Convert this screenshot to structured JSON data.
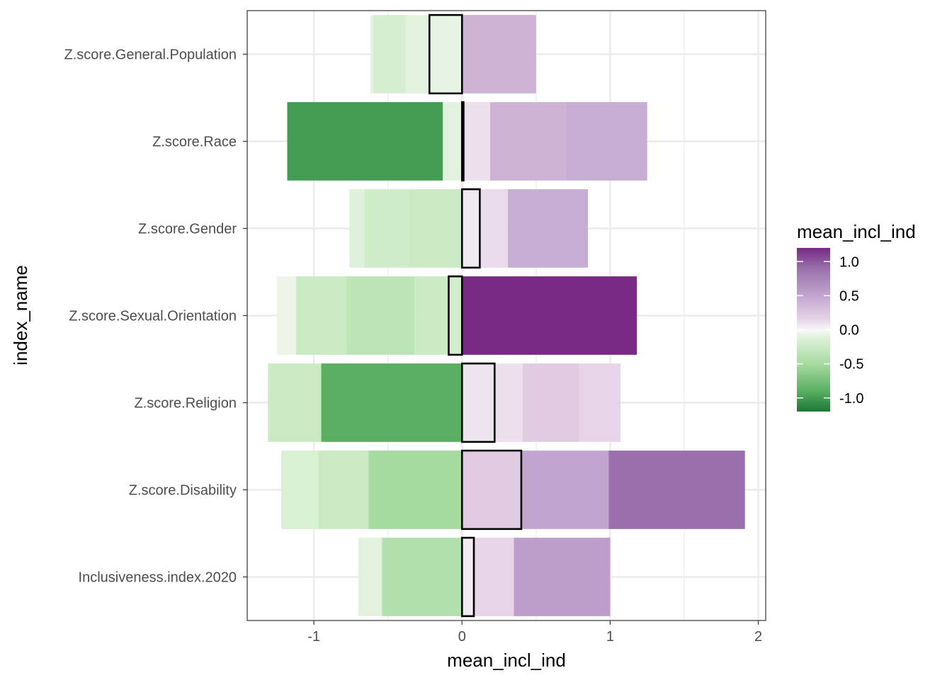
{
  "chart_data": {
    "type": "bar",
    "xlabel": "mean_incl_ind",
    "ylabel": "index_name",
    "xlim": [
      -1.45,
      2.05
    ],
    "x_ticks": [
      -1,
      0,
      1,
      2
    ],
    "x_tick_labels": [
      "-1",
      "0",
      "1",
      "2"
    ],
    "grid": true,
    "categories": [
      "Z.score.General.Population",
      "Z.score.Race",
      "Z.score.Gender",
      "Z.score.Sexual.Orientation",
      "Z.score.Religion",
      "Z.score.Disability",
      "Inclusiveness.index.2020"
    ],
    "segments": [
      [
        {
          "from": -0.62,
          "to": -0.6,
          "value": -0.08
        },
        {
          "from": -0.6,
          "to": -0.38,
          "value": -0.18
        },
        {
          "from": -0.38,
          "to": -0.21,
          "value": -0.1
        },
        {
          "from": -0.21,
          "to": 0.0,
          "value": -0.08
        },
        {
          "from": 0.0,
          "to": 0.5,
          "value": 0.4
        }
      ],
      [
        {
          "from": -1.18,
          "to": -0.13,
          "value": -1.0
        },
        {
          "from": -0.13,
          "to": 0.0,
          "value": -0.1
        },
        {
          "from": 0.0,
          "to": 0.02,
          "value": 0.3
        },
        {
          "from": 0.02,
          "to": 0.19,
          "value": 0.1
        },
        {
          "from": 0.19,
          "to": 0.7,
          "value": 0.4
        },
        {
          "from": 0.7,
          "to": 1.25,
          "value": 0.45
        }
      ],
      [
        {
          "from": -0.76,
          "to": -0.66,
          "value": -0.12
        },
        {
          "from": -0.66,
          "to": -0.36,
          "value": -0.22
        },
        {
          "from": -0.36,
          "to": 0.0,
          "value": -0.25
        },
        {
          "from": 0.0,
          "to": 0.12,
          "value": 0.06
        },
        {
          "from": 0.12,
          "to": 0.31,
          "value": 0.12
        },
        {
          "from": 0.31,
          "to": 0.85,
          "value": 0.45
        }
      ],
      [
        {
          "from": -1.25,
          "to": -1.12,
          "value": -0.05
        },
        {
          "from": -1.12,
          "to": -0.78,
          "value": -0.25
        },
        {
          "from": -0.78,
          "to": -0.32,
          "value": -0.35
        },
        {
          "from": -0.32,
          "to": -0.09,
          "value": -0.25
        },
        {
          "from": -0.09,
          "to": 0.0,
          "value": -0.2
        },
        {
          "from": 0.0,
          "to": 1.18,
          "value": 1.2
        }
      ],
      [
        {
          "from": -1.31,
          "to": -0.95,
          "value": -0.25
        },
        {
          "from": -0.95,
          "to": 0.0,
          "value": -0.9
        },
        {
          "from": 0.0,
          "to": 0.22,
          "value": 0.08
        },
        {
          "from": 0.22,
          "to": 0.41,
          "value": 0.1
        },
        {
          "from": 0.41,
          "to": 0.79,
          "value": 0.22
        },
        {
          "from": 0.79,
          "to": 1.07,
          "value": 0.15
        }
      ],
      [
        {
          "from": -1.22,
          "to": -0.97,
          "value": -0.15
        },
        {
          "from": -0.97,
          "to": -0.63,
          "value": -0.25
        },
        {
          "from": -0.63,
          "to": 0.0,
          "value": -0.5
        },
        {
          "from": 0.0,
          "to": 0.4,
          "value": 0.22
        },
        {
          "from": 0.4,
          "to": 0.99,
          "value": 0.5
        },
        {
          "from": 0.99,
          "to": 1.91,
          "value": 0.9
        }
      ],
      [
        {
          "from": -0.7,
          "to": -0.54,
          "value": -0.1
        },
        {
          "from": -0.54,
          "to": 0.0,
          "value": -0.42
        },
        {
          "from": 0.0,
          "to": 0.08,
          "value": 0.05
        },
        {
          "from": 0.08,
          "to": 0.35,
          "value": 0.15
        },
        {
          "from": 0.35,
          "to": 1.0,
          "value": 0.55
        }
      ]
    ],
    "outlined": [
      {
        "from": -0.22,
        "to": 0.0
      },
      {
        "from": 0.0,
        "to": 0.01
      },
      {
        "from": 0.0,
        "to": 0.12
      },
      {
        "from": -0.09,
        "to": 0.0
      },
      {
        "from": 0.0,
        "to": 0.22
      },
      {
        "from": 0.0,
        "to": 0.4
      },
      {
        "from": 0.0,
        "to": 0.08
      }
    ],
    "legend": {
      "title": "mean_incl_ind",
      "placement": "right",
      "range": [
        -1.2,
        1.2
      ],
      "ticks": [
        1.0,
        0.5,
        0.0,
        -0.5,
        -1.0
      ],
      "tick_labels": [
        "1.0",
        "0.5",
        "0.0",
        "-0.5",
        "-1.0"
      ],
      "color_stops": [
        {
          "value": -1.2,
          "color": "#1b7837"
        },
        {
          "value": -0.9,
          "color": "#5aae61"
        },
        {
          "value": -0.5,
          "color": "#a6dba0"
        },
        {
          "value": -0.15,
          "color": "#d9f0d3"
        },
        {
          "value": 0.0,
          "color": "#f7f7f7"
        },
        {
          "value": 0.15,
          "color": "#e7d4e8"
        },
        {
          "value": 0.5,
          "color": "#c2a5cf"
        },
        {
          "value": 0.9,
          "color": "#9970ab"
        },
        {
          "value": 1.2,
          "color": "#762a83"
        }
      ]
    }
  }
}
